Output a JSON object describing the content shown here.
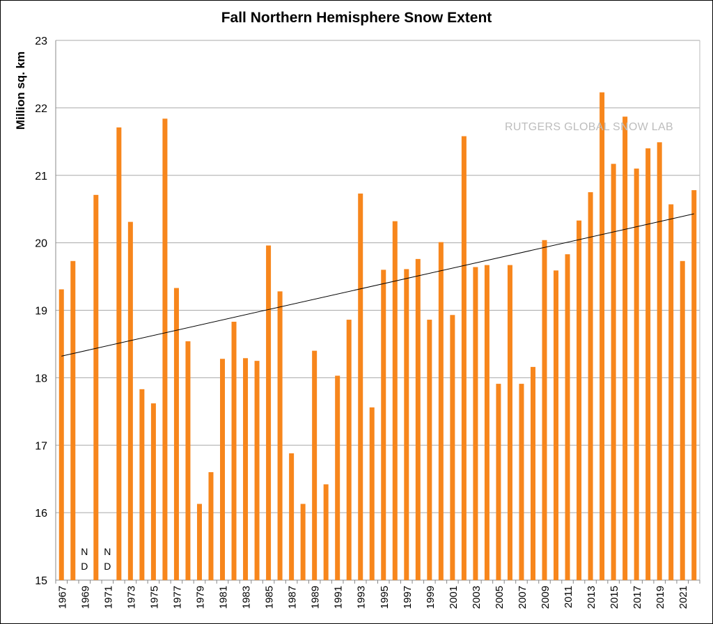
{
  "chart_data": {
    "type": "bar",
    "title": "Fall Northern Hemisphere Snow Extent",
    "ylabel": "Million sq. km",
    "xlabel": "",
    "ylim": [
      15,
      23
    ],
    "yticks": [
      15,
      16,
      17,
      18,
      19,
      20,
      21,
      22,
      23
    ],
    "grid": true,
    "bar_color": "#f7861c",
    "watermark": "RUTGERS GLOBAL SNOW LAB",
    "no_data_label": [
      "N",
      "D"
    ],
    "categories": [
      1967,
      1968,
      1969,
      1970,
      1971,
      1972,
      1973,
      1974,
      1975,
      1976,
      1977,
      1978,
      1979,
      1980,
      1981,
      1982,
      1983,
      1984,
      1985,
      1986,
      1987,
      1988,
      1989,
      1990,
      1991,
      1992,
      1993,
      1994,
      1995,
      1996,
      1997,
      1998,
      1999,
      2000,
      2001,
      2002,
      2003,
      2004,
      2005,
      2006,
      2007,
      2008,
      2009,
      2010,
      2011,
      2012,
      2013,
      2014,
      2015,
      2016,
      2017,
      2018,
      2019,
      2020,
      2021,
      2022
    ],
    "values": [
      19.31,
      19.73,
      null,
      20.71,
      null,
      21.71,
      20.31,
      17.83,
      17.62,
      21.84,
      19.33,
      18.54,
      16.13,
      16.6,
      18.28,
      18.83,
      18.29,
      18.25,
      19.96,
      19.28,
      16.88,
      16.13,
      18.4,
      16.42,
      18.03,
      18.86,
      20.73,
      17.56,
      19.6,
      20.32,
      19.61,
      19.76,
      18.86,
      20.01,
      18.93,
      21.58,
      19.64,
      19.67,
      17.91,
      19.67,
      17.91,
      18.16,
      20.04,
      19.59,
      19.83,
      20.33,
      20.75,
      22.23,
      21.17,
      21.87,
      21.1,
      21.4,
      21.49,
      20.57,
      19.73,
      20.78
    ],
    "trendline": {
      "start": [
        1967,
        18.32
      ],
      "end": [
        2022,
        20.43
      ]
    }
  }
}
